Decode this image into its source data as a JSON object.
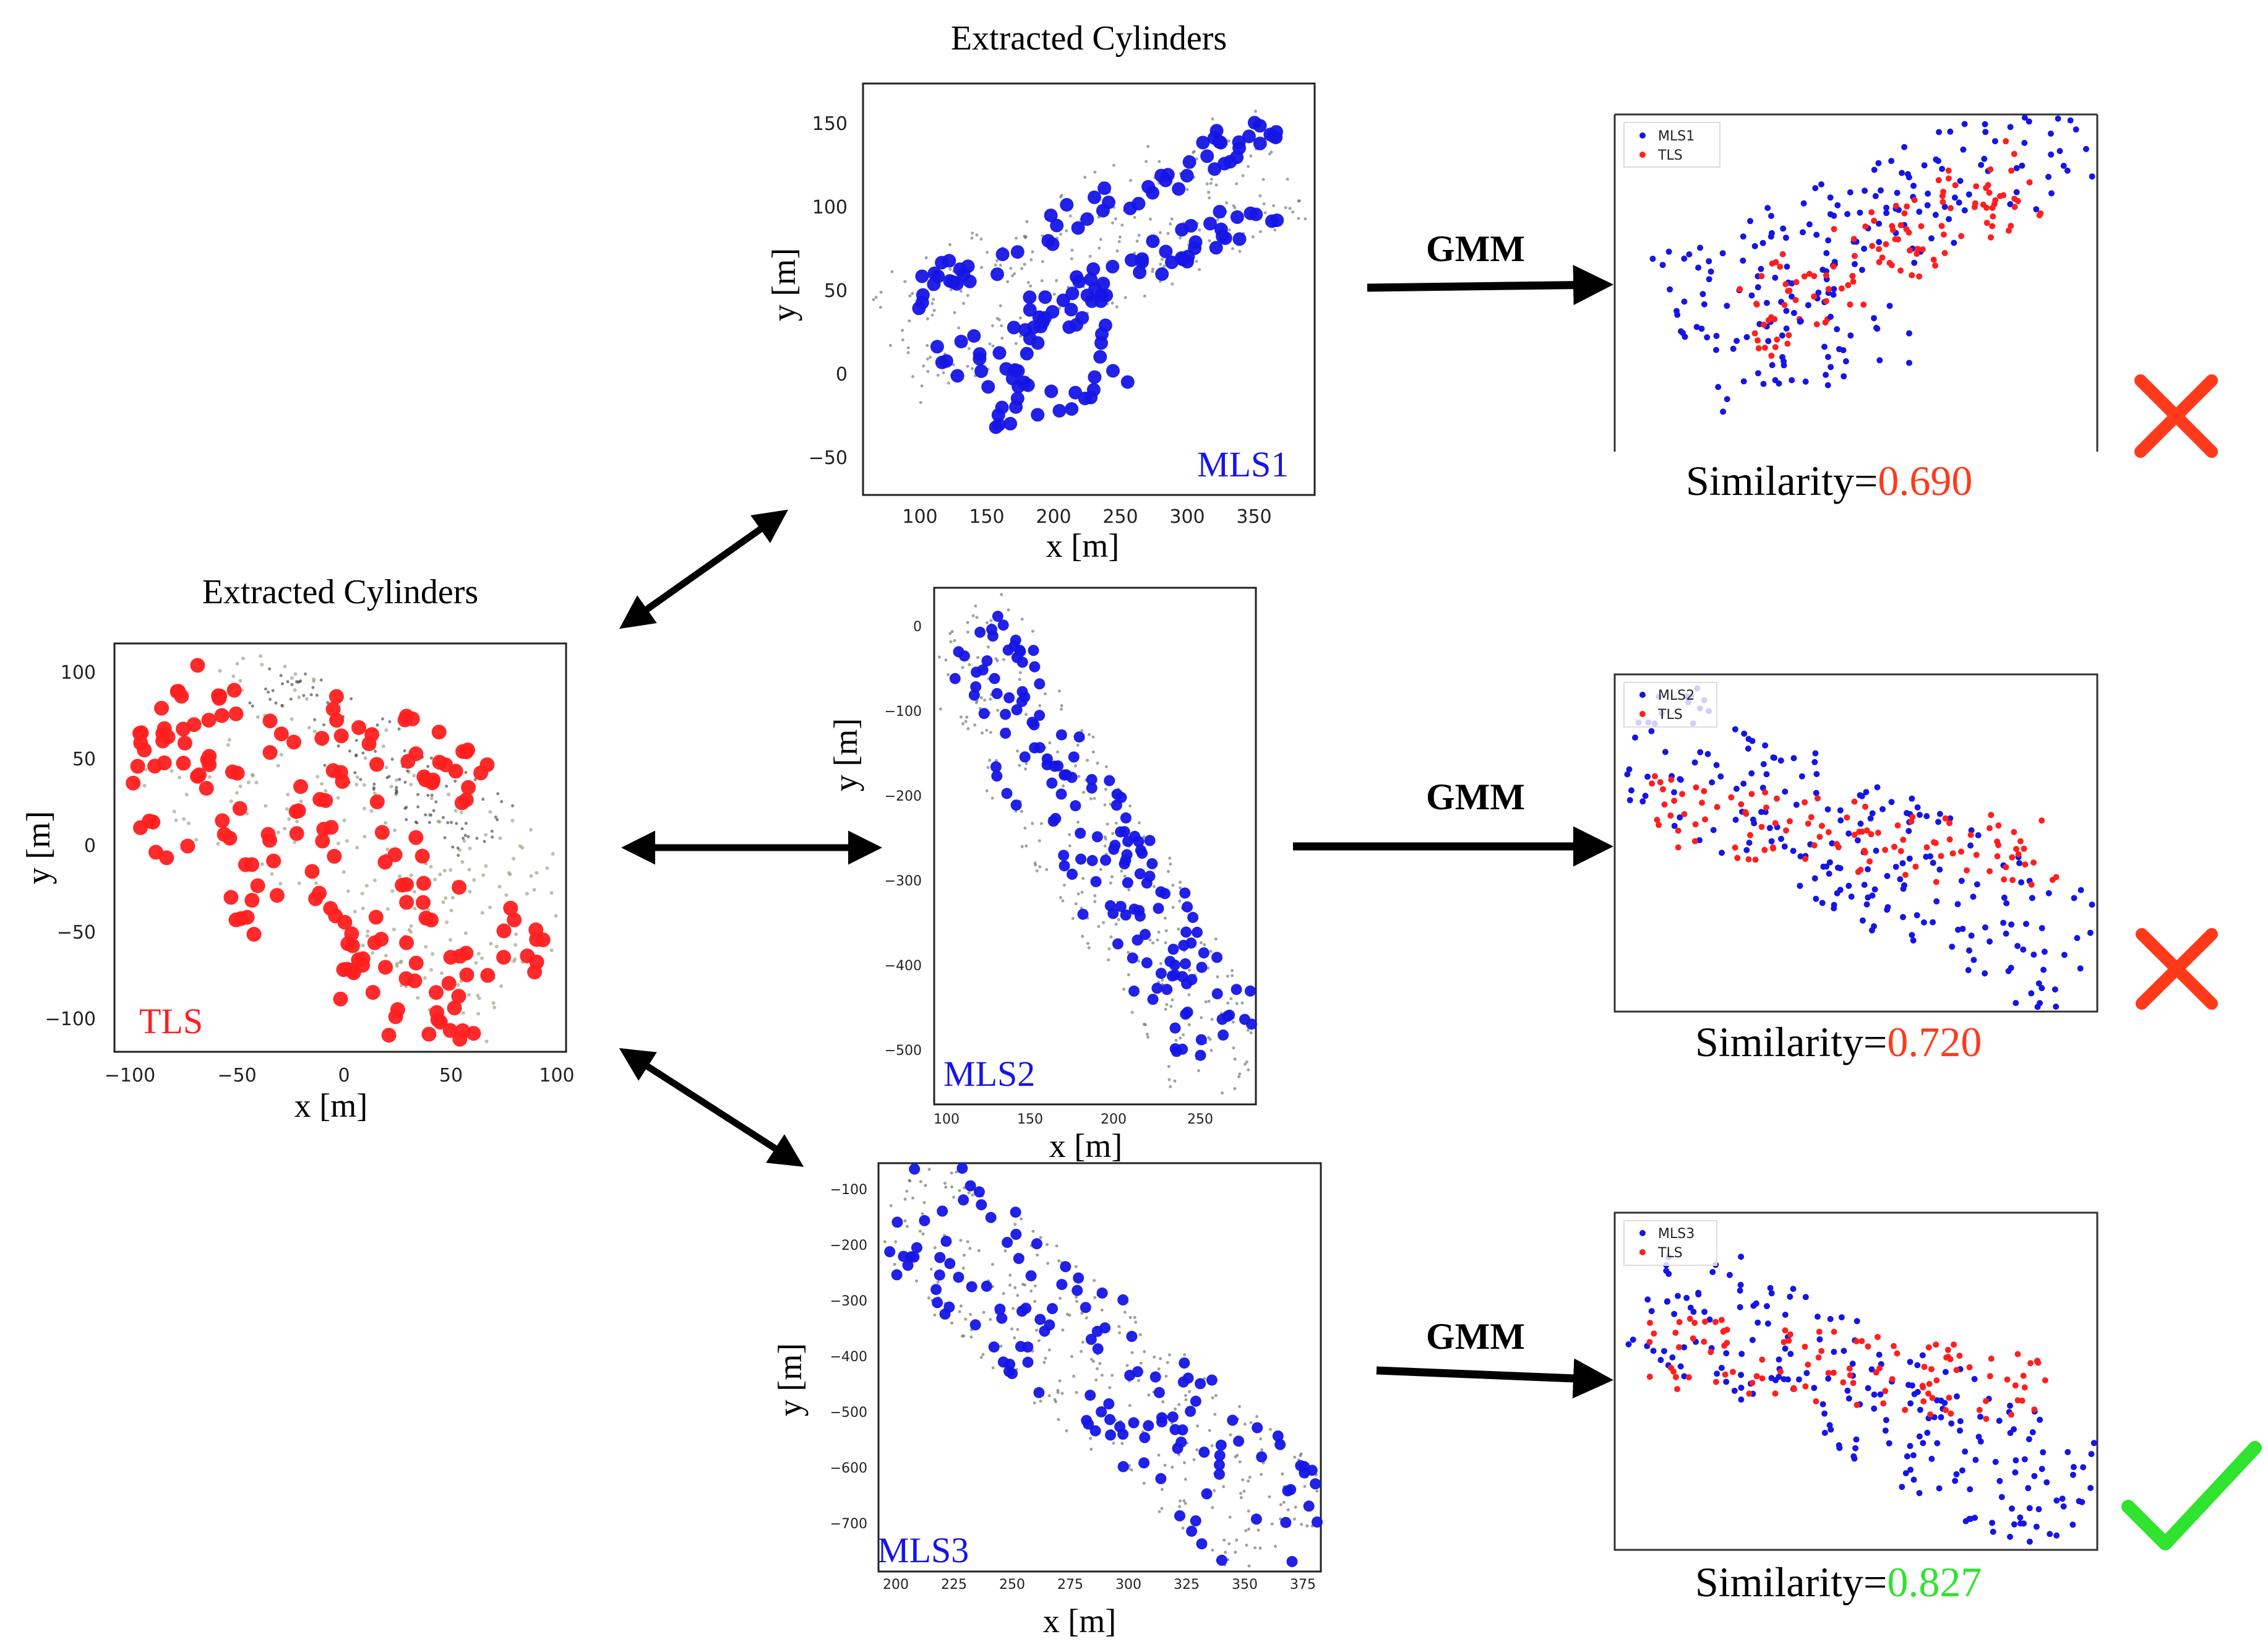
{
  "colors": {
    "tls": "#ff1f1f",
    "mls": "#1515e6",
    "fail": "#ff3a1a",
    "pass": "#2fe32f",
    "arrow": "#000000"
  },
  "tls_panel": {
    "title": "Extracted Cylinders",
    "tag": "TLS",
    "xlabel": "x [m]",
    "ylabel": "y [m]",
    "xticks": [
      "−100",
      "−50",
      "0",
      "50",
      "100"
    ],
    "yticks": [
      "100",
      "50",
      "0",
      "−50",
      "−100"
    ]
  },
  "mls_panels": [
    {
      "id": "mls1",
      "title": "Extracted Cylinders",
      "tag": "MLS1",
      "xlabel": "x [m]",
      "ylabel": "y [m]",
      "xticks": [
        "100",
        "150",
        "200",
        "250",
        "300",
        "350"
      ],
      "yticks": [
        "150",
        "100",
        "50",
        "0",
        "−50"
      ]
    },
    {
      "id": "mls2",
      "tag": "MLS2",
      "xlabel": "x [m]",
      "ylabel": "y [m]",
      "xticks": [
        "100",
        "150",
        "200",
        "250"
      ],
      "yticks": [
        "0",
        "−100",
        "−200",
        "−300",
        "−400",
        "−500"
      ]
    },
    {
      "id": "mls3",
      "tag": "MLS3",
      "xlabel": "x [m]",
      "ylabel": "y [m]",
      "xticks": [
        "200",
        "225",
        "250",
        "275",
        "300",
        "325",
        "350",
        "375"
      ],
      "yticks": [
        "−100",
        "−200",
        "−300",
        "−400",
        "−500",
        "−600",
        "−700"
      ]
    }
  ],
  "matches": [
    {
      "gmm_label": "GMM",
      "legend": [
        "MLS1",
        "TLS"
      ],
      "similarity_label": "Similarity=",
      "similarity_value": "0.690",
      "result": "fail",
      "result_icon": "cross-icon"
    },
    {
      "gmm_label": "GMM",
      "legend": [
        "MLS2",
        "TLS"
      ],
      "similarity_label": "Similarity=",
      "similarity_value": "0.720",
      "result": "fail",
      "result_icon": "cross-icon"
    },
    {
      "gmm_label": "GMM",
      "legend": [
        "MLS3",
        "TLS"
      ],
      "similarity_label": "Similarity=",
      "similarity_value": "0.827",
      "result": "pass",
      "result_icon": "check-icon"
    }
  ]
}
